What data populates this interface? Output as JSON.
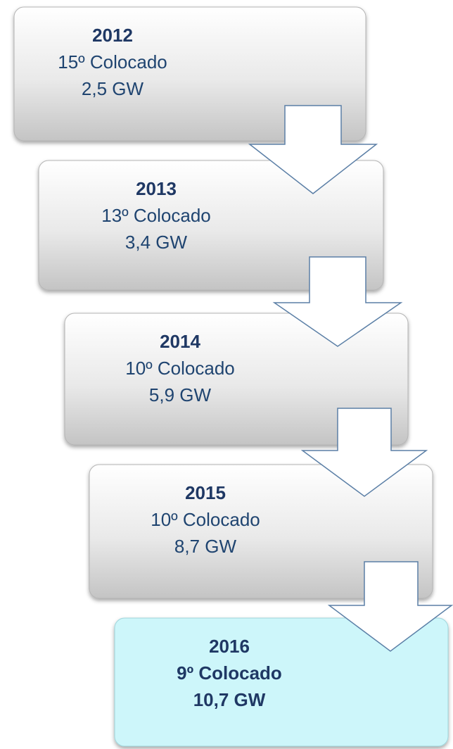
{
  "steps": [
    {
      "year": "2012",
      "rank": "15º Colocado",
      "capacity": "2,5 GW"
    },
    {
      "year": "2013",
      "rank": "13º Colocado",
      "capacity": "3,4 GW"
    },
    {
      "year": "2014",
      "rank": "10º Colocado",
      "capacity": "5,9 GW"
    },
    {
      "year": "2015",
      "rank": "10º Colocado",
      "capacity": "8,7 GW"
    },
    {
      "year": "2016",
      "rank": "9º Colocado",
      "capacity": "10,7 GW"
    }
  ]
}
